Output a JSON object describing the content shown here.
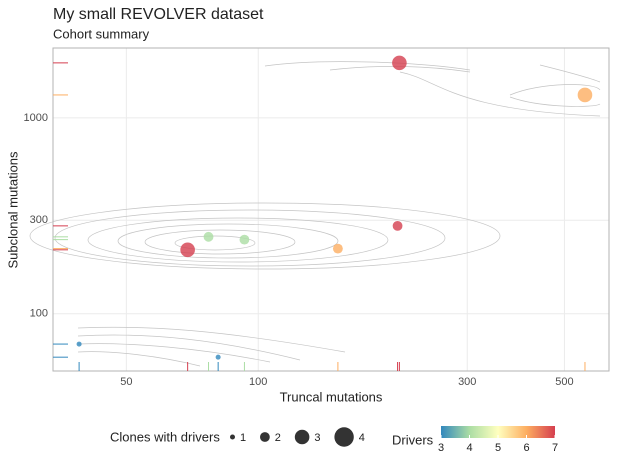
{
  "chart_data": {
    "type": "scatter",
    "title": "My small REVOLVER dataset",
    "subtitle": "Cohort summary",
    "xlabel": "Truncal mutations",
    "ylabel": "Subclonal mutations",
    "x": [
      210,
      557,
      69,
      77,
      93,
      152,
      208,
      39,
      81
    ],
    "y": [
      1910,
      1310,
      212,
      247,
      239,
      215,
      281,
      70,
      60
    ],
    "size": [
      3,
      3,
      3,
      2,
      2,
      2,
      2,
      1,
      1
    ],
    "drivers": [
      7,
      6,
      7,
      4,
      4,
      6,
      7,
      3,
      3
    ],
    "xlim": [
      34,
      632
    ],
    "ylim": [
      51,
      2275
    ],
    "xticks": [
      50,
      100,
      300,
      500
    ],
    "yticks": [
      100,
      300,
      1000
    ],
    "log_x": true,
    "log_y": true,
    "grid": true,
    "rug": true,
    "size_legend": {
      "title": "Clones with drivers",
      "breaks": [
        1,
        2,
        3,
        4
      ]
    },
    "color_legend": {
      "title": "Drivers",
      "ticks": [
        3,
        4,
        5,
        6,
        7
      ],
      "range": [
        3,
        7
      ],
      "palette": [
        "#3288bd",
        "#abdda4",
        "#ffffbf",
        "#fdae61",
        "#d53e4f"
      ]
    }
  }
}
